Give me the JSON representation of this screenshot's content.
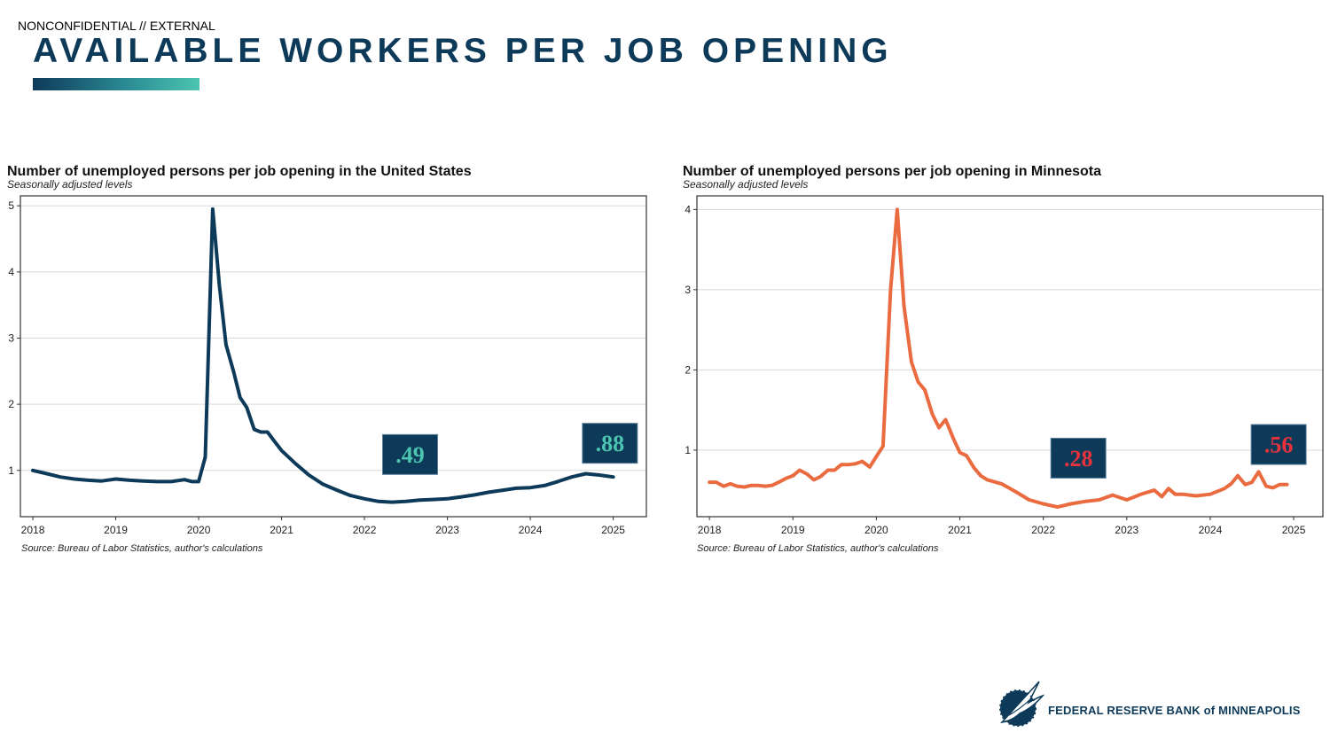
{
  "header": {
    "classification": "NONCONFIDENTIAL // EXTERNAL",
    "title": "AVAILABLE WORKERS PER JOB OPENING"
  },
  "footer": {
    "logo_text": "FEDERAL RESERVE BANK of MINNEAPOLIS"
  },
  "colors": {
    "title": "#0e3a5a",
    "us_line": "#0e3a5a",
    "mn_line": "#ea6b3f",
    "callout_bg": "#0e3a5a",
    "us_callout_text": "#4cc4b0",
    "mn_callout_text": "#e8323c"
  },
  "chart_data": [
    {
      "id": "us",
      "type": "line",
      "title": "Number of unemployed persons per job opening in the United States",
      "subtitle": "Seasonally adjusted levels",
      "source": "Source: Bureau of Labor Statistics, author's calculations",
      "xlabel": "",
      "ylabel": "",
      "xlim": [
        2017.85,
        2025.4
      ],
      "ylim": [
        0.3,
        5.15
      ],
      "xticks": [
        "2018",
        "2019",
        "2020",
        "2021",
        "2022",
        "2023",
        "2024",
        "2025"
      ],
      "yticks": [
        1,
        2,
        3,
        4,
        5
      ],
      "grid": true,
      "color": "#0e3a5a",
      "series": [
        {
          "x": [
            2018.0,
            2018.17,
            2018.33,
            2018.5,
            2018.67,
            2018.83,
            2019.0,
            2019.17,
            2019.33,
            2019.5,
            2019.67,
            2019.83,
            2019.92,
            2020.0,
            2020.08,
            2020.17,
            2020.25,
            2020.33,
            2020.42,
            2020.5,
            2020.58,
            2020.67,
            2020.75,
            2020.83,
            2020.92,
            2021.0,
            2021.17,
            2021.33,
            2021.5,
            2021.67,
            2021.83,
            2022.0,
            2022.17,
            2022.33,
            2022.5,
            2022.67,
            2022.83,
            2023.0,
            2023.17,
            2023.33,
            2023.5,
            2023.67,
            2023.83,
            2024.0,
            2024.17,
            2024.33,
            2024.5,
            2024.67,
            2024.83,
            2025.0
          ],
          "y": [
            1.0,
            0.95,
            0.9,
            0.87,
            0.85,
            0.84,
            0.87,
            0.85,
            0.84,
            0.83,
            0.83,
            0.86,
            0.83,
            0.83,
            1.2,
            4.95,
            3.8,
            2.9,
            2.5,
            2.1,
            1.95,
            1.62,
            1.58,
            1.58,
            1.43,
            1.3,
            1.1,
            0.93,
            0.79,
            0.7,
            0.62,
            0.57,
            0.53,
            0.52,
            0.53,
            0.55,
            0.56,
            0.57,
            0.6,
            0.63,
            0.67,
            0.7,
            0.73,
            0.74,
            0.77,
            0.83,
            0.9,
            0.95,
            0.93,
            0.9
          ]
        }
      ],
      "annotations": [
        {
          "text": ".49",
          "x": 2022.55,
          "y": 1.24
        },
        {
          "text": ".88",
          "x": 2024.96,
          "y": 1.41
        }
      ]
    },
    {
      "id": "mn",
      "type": "line",
      "title": "Number of unemployed persons per job opening in Minnesota",
      "subtitle": "Seasonally adjusted levels",
      "source": "Source: Bureau of Labor Statistics, author's calculations",
      "xlabel": "",
      "ylabel": "",
      "xlim": [
        2017.85,
        2025.35
      ],
      "ylim": [
        0.17,
        4.17
      ],
      "xticks": [
        "2018",
        "2019",
        "2020",
        "2021",
        "2022",
        "2023",
        "2024",
        "2025"
      ],
      "yticks": [
        1,
        2,
        3,
        4
      ],
      "grid": true,
      "color": "#ea6b3f",
      "series": [
        {
          "x": [
            2018.0,
            2018.08,
            2018.17,
            2018.25,
            2018.33,
            2018.42,
            2018.5,
            2018.58,
            2018.67,
            2018.75,
            2018.83,
            2018.92,
            2019.0,
            2019.08,
            2019.17,
            2019.25,
            2019.33,
            2019.42,
            2019.5,
            2019.58,
            2019.67,
            2019.75,
            2019.83,
            2019.92,
            2020.0,
            2020.08,
            2020.17,
            2020.25,
            2020.33,
            2020.42,
            2020.5,
            2020.58,
            2020.67,
            2020.75,
            2020.83,
            2020.92,
            2021.0,
            2021.08,
            2021.17,
            2021.25,
            2021.33,
            2021.5,
            2021.67,
            2021.83,
            2022.0,
            2022.17,
            2022.33,
            2022.5,
            2022.67,
            2022.83,
            2023.0,
            2023.17,
            2023.33,
            2023.42,
            2023.5,
            2023.58,
            2023.67,
            2023.83,
            2024.0,
            2024.17,
            2024.25,
            2024.33,
            2024.42,
            2024.5,
            2024.58,
            2024.67,
            2024.75,
            2024.83,
            2024.92
          ],
          "y": [
            0.6,
            0.6,
            0.55,
            0.58,
            0.55,
            0.54,
            0.56,
            0.56,
            0.55,
            0.56,
            0.6,
            0.65,
            0.68,
            0.75,
            0.7,
            0.63,
            0.67,
            0.75,
            0.75,
            0.82,
            0.82,
            0.83,
            0.86,
            0.79,
            0.92,
            1.05,
            3.0,
            4.0,
            2.8,
            2.1,
            1.85,
            1.75,
            1.45,
            1.28,
            1.38,
            1.15,
            0.97,
            0.93,
            0.78,
            0.68,
            0.63,
            0.58,
            0.48,
            0.38,
            0.33,
            0.29,
            0.33,
            0.36,
            0.38,
            0.44,
            0.38,
            0.45,
            0.5,
            0.42,
            0.52,
            0.45,
            0.45,
            0.43,
            0.45,
            0.52,
            0.58,
            0.68,
            0.57,
            0.6,
            0.73,
            0.55,
            0.53,
            0.57,
            0.57
          ]
        }
      ],
      "annotations": [
        {
          "text": ".28",
          "x": 2022.42,
          "y": 0.9
        },
        {
          "text": ".56",
          "x": 2024.82,
          "y": 1.07
        }
      ]
    }
  ]
}
